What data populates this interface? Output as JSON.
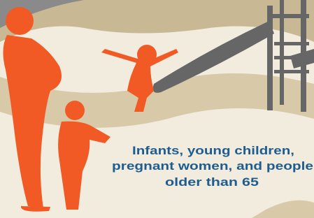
{
  "caption": {
    "lines": [
      "Infants, young children,",
      "pregnant women, and people",
      "older than 65"
    ]
  }
}
